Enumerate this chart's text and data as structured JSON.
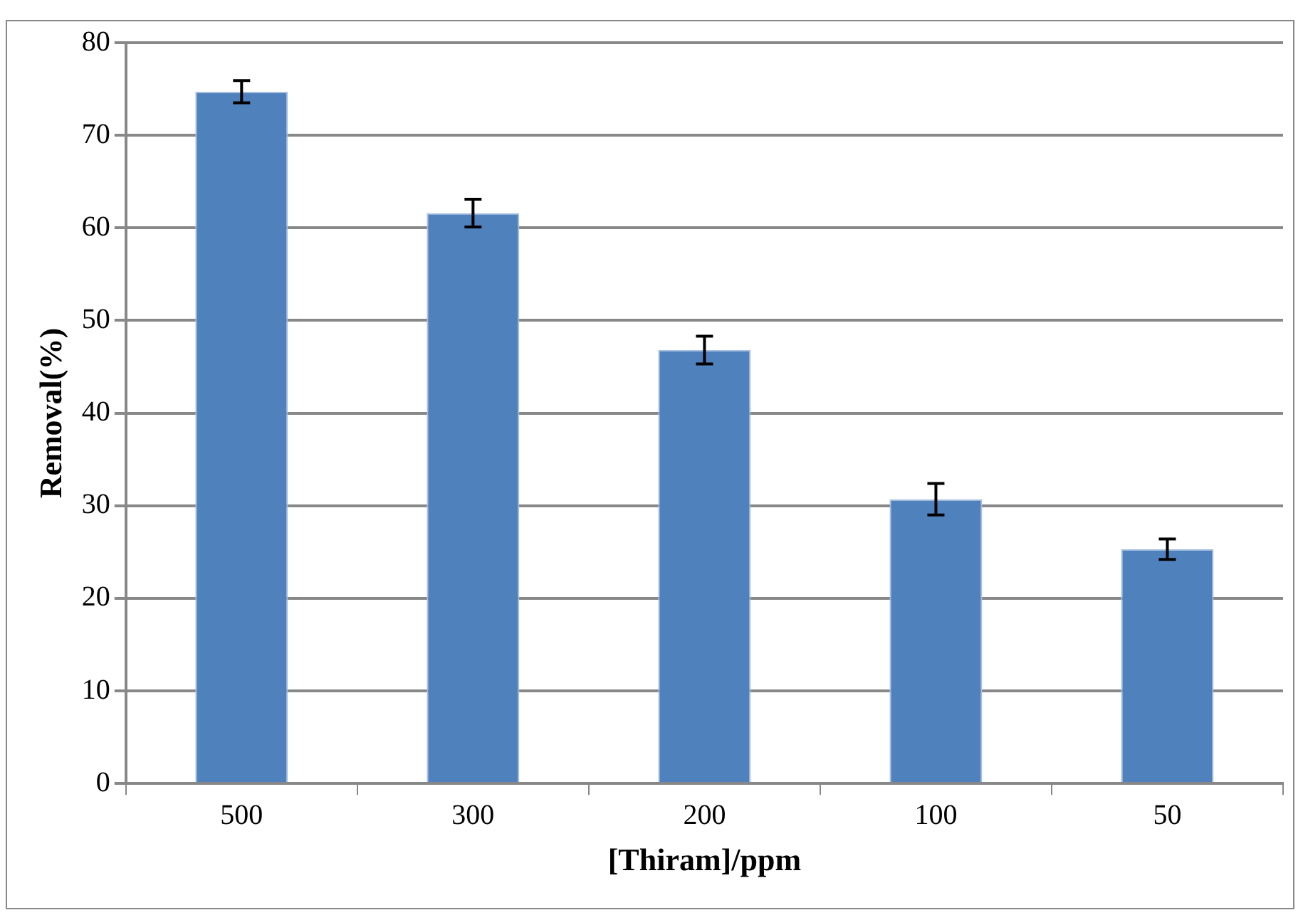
{
  "chart_data": {
    "type": "bar",
    "xlabel": "[Thiram]/ppm",
    "ylabel": "Removal(%)",
    "categories": [
      "500",
      "300",
      "200",
      "100",
      "50"
    ],
    "values": [
      74.7,
      61.6,
      46.8,
      30.7,
      25.3
    ],
    "errors": [
      1.2,
      1.5,
      1.5,
      1.7,
      1.1
    ],
    "color": "#4f81bd",
    "ylim": [
      0,
      80
    ],
    "yticks": [
      0,
      10,
      20,
      30,
      40,
      50,
      60,
      70,
      80
    ],
    "grid": "y",
    "legend": false
  }
}
